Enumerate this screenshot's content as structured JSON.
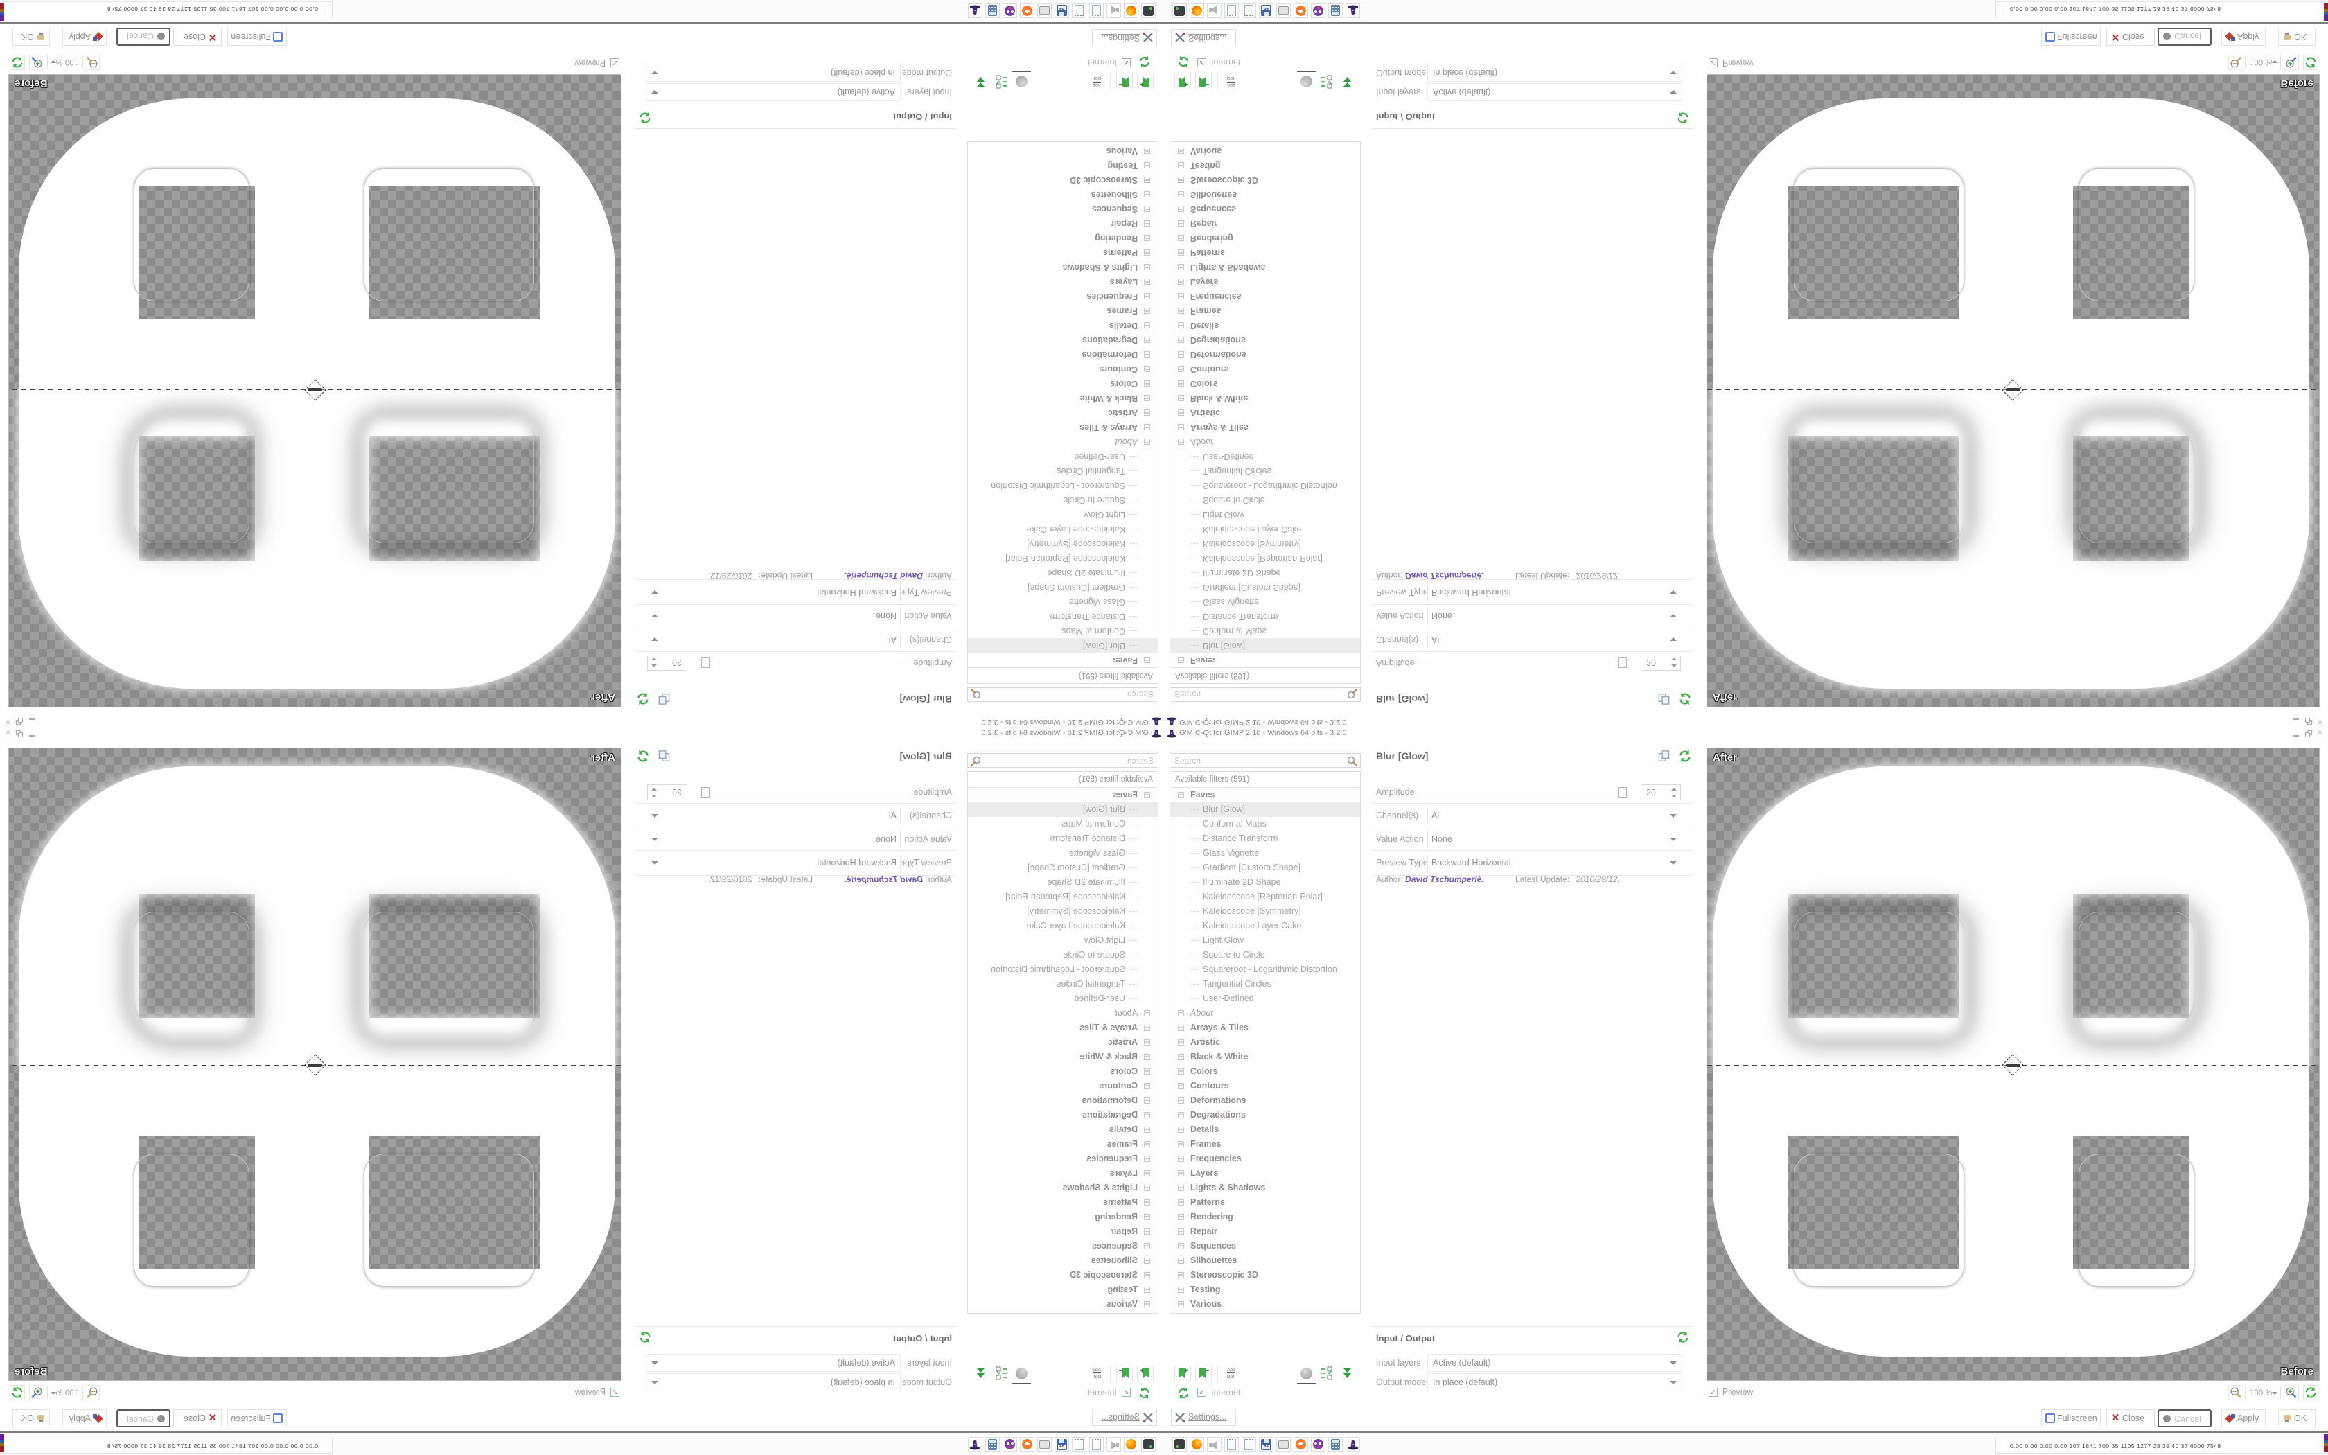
{
  "window": {
    "title": "G'MIC-Qt for GIMP 2.10 - Windows 64 bits - 3.2.6"
  },
  "filters": {
    "search_placeholder": "Search",
    "header": "Available filters (591)",
    "faves_label": "Faves",
    "selected": "Blur [Glow]",
    "faves": [
      {
        "label": "Blur [Glow]",
        "cls": "selected"
      },
      {
        "label": "Conformal Maps"
      },
      {
        "label": "Distance Transform"
      },
      {
        "label": "Glass Vignette"
      },
      {
        "label": "Gradient [Custom Shape]"
      },
      {
        "label": "Illuminate 2D Shape"
      },
      {
        "label": "Kaleidoscope [Reptorian-Polar]"
      },
      {
        "label": "Kaleidoscope [Symmetry]"
      },
      {
        "label": "Kaleidoscope Layer Cake"
      },
      {
        "label": "Light Glow"
      },
      {
        "label": "Square to Circle"
      },
      {
        "label": "Squareroot - Logarithmic Distortion"
      },
      {
        "label": "Tangential Circles"
      },
      {
        "label": "User-Defined"
      }
    ],
    "categories": [
      {
        "label": "About",
        "cls": "about"
      },
      {
        "label": "Arrays & Tiles"
      },
      {
        "label": "Artistic"
      },
      {
        "label": "Black & White"
      },
      {
        "label": "Colors"
      },
      {
        "label": "Contours"
      },
      {
        "label": "Deformations"
      },
      {
        "label": "Degradations"
      },
      {
        "label": "Details"
      },
      {
        "label": "Frames"
      },
      {
        "label": "Frequencies"
      },
      {
        "label": "Layers"
      },
      {
        "label": "Lights & Shadows"
      },
      {
        "label": "Patterns"
      },
      {
        "label": "Rendering"
      },
      {
        "label": "Repair"
      },
      {
        "label": "Sequences"
      },
      {
        "label": "Silhouettes"
      },
      {
        "label": "Stereoscopic 3D"
      },
      {
        "label": "Testing"
      },
      {
        "label": "Various"
      }
    ]
  },
  "params": {
    "title": "Blur [Glow]",
    "amplitude_label": "Amplitude",
    "amplitude_value": "20",
    "channels_label": "Channel(s)",
    "channels_value": "All",
    "value_action_label": "Value Action",
    "value_action_value": "None",
    "preview_type_label": "Preview Type",
    "preview_type_value": "Backward Horizontal",
    "author_label": "Author:",
    "author_link": "David Tschumperlé.",
    "update_label": "Latest Update:",
    "update_value": "2010/29/12."
  },
  "io": {
    "title": "Input / Output",
    "input_label": "Input layers",
    "input_value": "Active (default)",
    "output_label": "Output mode",
    "output_value": "In place (default)"
  },
  "tree_footer": {
    "internet_label": "Internet",
    "settings_label": "Settings..."
  },
  "preview": {
    "after_label": "After",
    "before_label": "Before",
    "checkbox_label": "Preview",
    "zoom_value": "100 %"
  },
  "buttons": {
    "fullscreen": "Fullscreen",
    "close": "Close",
    "cancel": "Cancel",
    "apply": "Apply",
    "ok": "OK"
  },
  "taskbar": {
    "monitor_glyph": "↑",
    "monitor_values": "0.00 0.00 0.00 0.00  107 1841 700  35  1105 1277  28   39   40   37  6000 7548",
    "icons": [
      "console-icon",
      "firefox-icon",
      "speaker-muted-icon",
      "notepad-icon",
      "notepad-icon-2",
      "floppy-64-icon",
      "scroll-icon",
      "blender-icon",
      "gmic-mascot-icon",
      "calculator-icon",
      "gmic-hat-icon"
    ],
    "floppy_label": "64",
    "bars": [
      {
        "c": "#eef07c",
        "w": 34,
        "h": 3
      },
      {
        "c": "#6a1d9e",
        "w": 16,
        "h": 9,
        "mb": 16
      },
      {
        "c": "#97991f",
        "w": 20,
        "h": 15
      },
      {
        "c": "#a36a1f",
        "w": 22,
        "h": 10
      },
      {
        "c": "#2b5fb4",
        "w": 24,
        "h": 16
      },
      {
        "c": "#9e6b16",
        "w": 24,
        "h": 13
      },
      {
        "c": "#6fd44a",
        "w": 18,
        "h": 3
      },
      {
        "c": "#9c1f1f",
        "w": 26,
        "h": 8
      }
    ]
  },
  "colors": {
    "accent_green": "#3fae49",
    "hat_purple": "#3f2a75",
    "link_violet": "#6f58b8",
    "checker_dark": "#8b8b8b",
    "checker_light": "#9e9e9e",
    "selected_row": "#ececec"
  }
}
